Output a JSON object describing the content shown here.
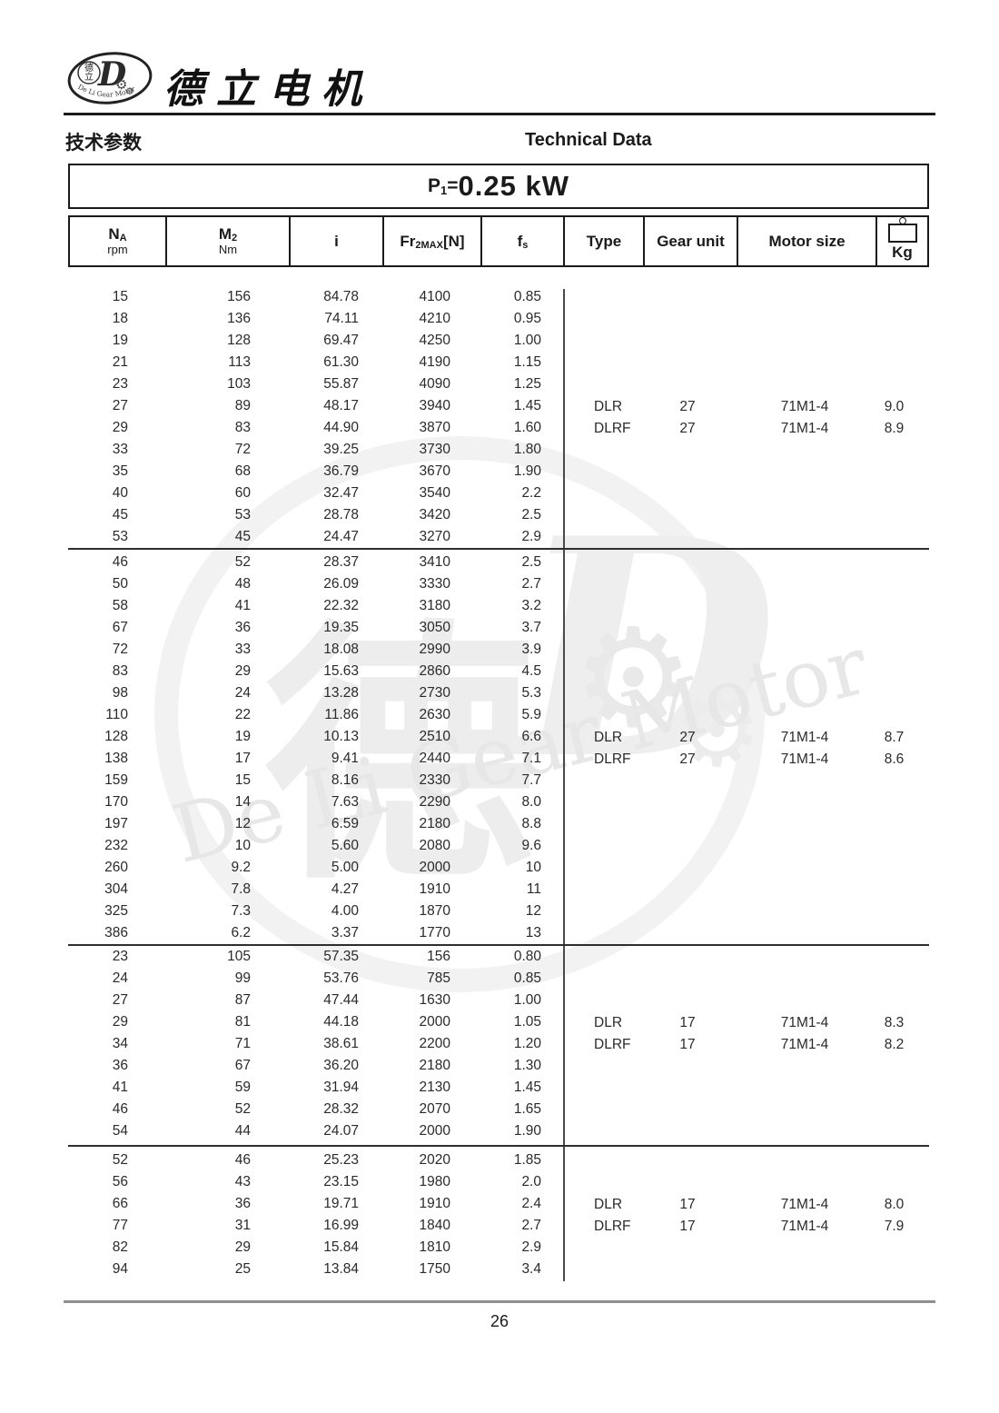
{
  "page": {
    "number": "26"
  },
  "colors": {
    "ink": "#1a1a1a",
    "footer_line": "#8f8f8f",
    "watermark": "#ededed"
  },
  "brand": {
    "company_name": "德立电机",
    "logo_arc_text": "De Li Gear Motor",
    "logo_char_top": "德",
    "logo_char_bottom": "立",
    "logo_letter": "D",
    "gear_icon_glyph": "⚙"
  },
  "header": {
    "section_title_zh": "技术参数",
    "section_title_en": "Technical Data",
    "power_prefix": "P",
    "power_sub": "1",
    "power_eq": "=",
    "power_value": "0.25 kW"
  },
  "table": {
    "columns": [
      {
        "main": "N",
        "sub": "A",
        "unit": "rpm"
      },
      {
        "main": "M",
        "sub": "2",
        "unit": "Nm"
      },
      {
        "main": "i"
      },
      {
        "main": "Fr",
        "sub": "2MAX",
        "suffix": "[N]"
      },
      {
        "main": "f",
        "sub": "s"
      },
      {
        "main": "Type"
      },
      {
        "main": "Gear unit"
      },
      {
        "main": "Motor size"
      },
      {
        "main": "Kg",
        "icon": "weight-icon"
      }
    ],
    "blocks": [
      {
        "rows": [
          [
            "15",
            "156",
            "84.78",
            "4100",
            "0.85"
          ],
          [
            "18",
            "136",
            "74.11",
            "4210",
            "0.95"
          ],
          [
            "19",
            "128",
            "69.47",
            "4250",
            "1.00"
          ],
          [
            "21",
            "113",
            "61.30",
            "4190",
            "1.15"
          ],
          [
            "23",
            "103",
            "55.87",
            "4090",
            "1.25"
          ],
          [
            "27",
            "89",
            "48.17",
            "3940",
            "1.45"
          ],
          [
            "29",
            "83",
            "44.90",
            "3870",
            "1.60"
          ],
          [
            "33",
            "72",
            "39.25",
            "3730",
            "1.80"
          ],
          [
            "35",
            "68",
            "36.79",
            "3670",
            "1.90"
          ],
          [
            "40",
            "60",
            "32.47",
            "3540",
            "2.2"
          ],
          [
            "45",
            "53",
            "28.78",
            "3420",
            "2.5"
          ],
          [
            "53",
            "45",
            "24.47",
            "3270",
            "2.9"
          ]
        ],
        "info": [
          {
            "type": "DLR",
            "gear": "27",
            "motor": "71M1-4",
            "kg": "9.0",
            "row": 5
          },
          {
            "type": "DLRF",
            "gear": "27",
            "motor": "71M1-4",
            "kg": "8.9",
            "row": 6
          }
        ]
      },
      {
        "rows": [
          [
            "46",
            "52",
            "28.37",
            "3410",
            "2.5"
          ],
          [
            "50",
            "48",
            "26.09",
            "3330",
            "2.7"
          ],
          [
            "58",
            "41",
            "22.32",
            "3180",
            "3.2"
          ],
          [
            "67",
            "36",
            "19.35",
            "3050",
            "3.7"
          ],
          [
            "72",
            "33",
            "18.08",
            "2990",
            "3.9"
          ],
          [
            "83",
            "29",
            "15.63",
            "2860",
            "4.5"
          ],
          [
            "98",
            "24",
            "13.28",
            "2730",
            "5.3"
          ],
          [
            "110",
            "22",
            "11.86",
            "2630",
            "5.9"
          ],
          [
            "128",
            "19",
            "10.13",
            "2510",
            "6.6"
          ],
          [
            "138",
            "17",
            "9.41",
            "2440",
            "7.1"
          ],
          [
            "159",
            "15",
            "8.16",
            "2330",
            "7.7"
          ],
          [
            "170",
            "14",
            "7.63",
            "2290",
            "8.0"
          ],
          [
            "197",
            "12",
            "6.59",
            "2180",
            "8.8"
          ],
          [
            "232",
            "10",
            "5.60",
            "2080",
            "9.6"
          ],
          [
            "260",
            "9.2",
            "5.00",
            "2000",
            "10"
          ],
          [
            "304",
            "7.8",
            "4.27",
            "1910",
            "11"
          ],
          [
            "325",
            "7.3",
            "4.00",
            "1870",
            "12"
          ],
          [
            "386",
            "6.2",
            "3.37",
            "1770",
            "13"
          ]
        ],
        "info": [
          {
            "type": "DLR",
            "gear": "27",
            "motor": "71M1-4",
            "kg": "8.7",
            "row": 8
          },
          {
            "type": "DLRF",
            "gear": "27",
            "motor": "71M1-4",
            "kg": "8.6",
            "row": 9
          }
        ]
      },
      {
        "rows": [
          [
            "23",
            "105",
            "57.35",
            "156",
            "0.80"
          ],
          [
            "24",
            "99",
            "53.76",
            "785",
            "0.85"
          ],
          [
            "27",
            "87",
            "47.44",
            "1630",
            "1.00"
          ],
          [
            "29",
            "81",
            "44.18",
            "2000",
            "1.05"
          ],
          [
            "34",
            "71",
            "38.61",
            "2200",
            "1.20"
          ],
          [
            "36",
            "67",
            "36.20",
            "2180",
            "1.30"
          ],
          [
            "41",
            "59",
            "31.94",
            "2130",
            "1.45"
          ],
          [
            "46",
            "52",
            "28.32",
            "2070",
            "1.65"
          ],
          [
            "54",
            "44",
            "24.07",
            "2000",
            "1.90"
          ]
        ],
        "info": [
          {
            "type": "DLR",
            "gear": "17",
            "motor": "71M1-4",
            "kg": "8.3",
            "row": 3
          },
          {
            "type": "DLRF",
            "gear": "17",
            "motor": "71M1-4",
            "kg": "8.2",
            "row": 4
          }
        ]
      },
      {
        "rows": [
          [
            "52",
            "46",
            "25.23",
            "2020",
            "1.85"
          ],
          [
            "56",
            "43",
            "23.15",
            "1980",
            "2.0"
          ],
          [
            "66",
            "36",
            "19.71",
            "1910",
            "2.4"
          ],
          [
            "77",
            "31",
            "16.99",
            "1840",
            "2.7"
          ],
          [
            "82",
            "29",
            "15.84",
            "1810",
            "2.9"
          ],
          [
            "94",
            "25",
            "13.84",
            "1750",
            "3.4"
          ]
        ],
        "info": [
          {
            "type": "DLR",
            "gear": "17",
            "motor": "71M1-4",
            "kg": "8.0",
            "row": 2
          },
          {
            "type": "DLRF",
            "gear": "17",
            "motor": "71M1-4",
            "kg": "7.9",
            "row": 3
          }
        ]
      }
    ]
  },
  "watermark": {
    "char": "德",
    "letter": "D",
    "gear_glyph": "⚙",
    "text": "De Li Gear Motor"
  }
}
